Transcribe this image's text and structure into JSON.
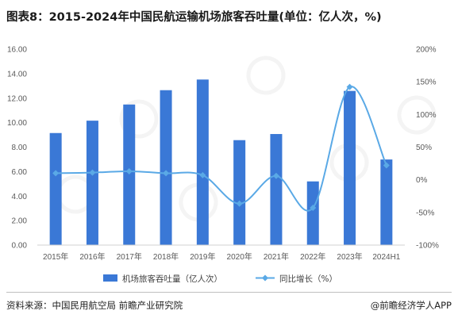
{
  "title": "图表8：2015-2024年中国民航运输机场旅客吞吐量(单位：亿人次，%)",
  "source": "资料来源：中国民用航空局 前瞻产业研究院",
  "brand": "@前瞻经济学人APP",
  "chart_data": {
    "type": "bar",
    "categories": [
      "2015年",
      "2016年",
      "2017年",
      "2018年",
      "2019年",
      "2020年",
      "2021年",
      "2022年",
      "2023年",
      "2024H1"
    ],
    "series": [
      {
        "name": "机场旅客吞吐量（亿人次）",
        "type": "bar",
        "axis": "left",
        "color": "#3a78d6",
        "values": [
          9.15,
          10.16,
          11.48,
          12.65,
          13.52,
          8.57,
          9.07,
          5.2,
          12.59,
          6.99
        ]
      },
      {
        "name": "同比增长（%）",
        "type": "line",
        "axis": "right",
        "color": "#5aa9e6",
        "values": [
          10.0,
          11.0,
          13.0,
          10.0,
          7.0,
          -36.6,
          5.9,
          -42.9,
          142.2,
          22.0
        ]
      }
    ],
    "y_left": {
      "min": 0,
      "max": 16,
      "step": 2,
      "tick_labels": [
        "0.00",
        "2.00",
        "4.00",
        "6.00",
        "8.00",
        "10.00",
        "12.00",
        "14.00",
        "16.00"
      ]
    },
    "y_right": {
      "min": -100,
      "max": 200,
      "step": 50,
      "tick_labels": [
        "-100%",
        "-50%",
        "0%",
        "50%",
        "100%",
        "150%",
        "200%"
      ]
    },
    "grid": false,
    "legend_position": "bottom"
  }
}
